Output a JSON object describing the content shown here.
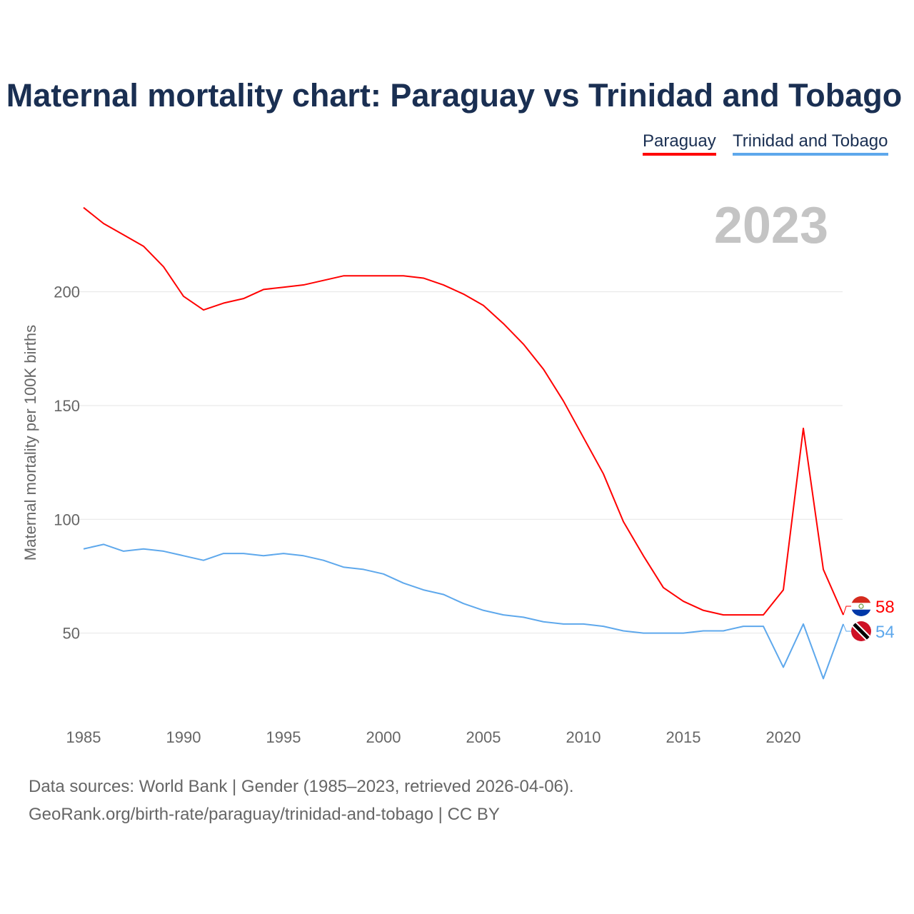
{
  "chart_data": {
    "type": "line",
    "title": "Maternal mortality chart: Paraguay vs Trinidad and Tobago",
    "xlabel": "",
    "ylabel": "Maternal mortality per 100K births",
    "ylim": [
      0,
      240
    ],
    "yticks": [
      50,
      100,
      150,
      200
    ],
    "xticks": [
      1985,
      1990,
      1995,
      2000,
      2005,
      2010,
      2015,
      2020
    ],
    "grid": true,
    "legend_position": "top-right",
    "year_label": "2023",
    "x": [
      1985,
      1986,
      1987,
      1988,
      1989,
      1990,
      1991,
      1992,
      1993,
      1994,
      1995,
      1996,
      1997,
      1998,
      1999,
      2000,
      2001,
      2002,
      2003,
      2004,
      2005,
      2006,
      2007,
      2008,
      2009,
      2010,
      2011,
      2012,
      2013,
      2014,
      2015,
      2016,
      2017,
      2018,
      2019,
      2020,
      2021,
      2022,
      2023
    ],
    "series": [
      {
        "name": "Paraguay",
        "color": "#ff0000",
        "end_label": "58",
        "values": [
          237,
          230,
          225,
          220,
          211,
          198,
          192,
          195,
          197,
          201,
          202,
          203,
          205,
          207,
          207,
          207,
          207,
          206,
          203,
          199,
          194,
          186,
          177,
          166,
          152,
          136,
          120,
          99,
          84,
          70,
          64,
          60,
          58,
          58,
          58,
          69,
          140,
          78,
          58
        ]
      },
      {
        "name": "Trinidad and Tobago",
        "color": "#5ea8ec",
        "end_label": "54",
        "values": [
          87,
          89,
          86,
          87,
          86,
          84,
          82,
          85,
          85,
          84,
          85,
          84,
          82,
          79,
          78,
          76,
          72,
          69,
          67,
          63,
          60,
          58,
          57,
          55,
          54,
          54,
          53,
          51,
          50,
          50,
          50,
          51,
          51,
          53,
          53,
          35,
          54,
          30,
          54
        ]
      }
    ]
  },
  "footer": {
    "line1": "Data sources: World Bank | Gender (1985–2023, retrieved 2026-04-06).",
    "line2": "GeoRank.org/birth-rate/paraguay/trinidad-and-tobago | CC BY"
  }
}
